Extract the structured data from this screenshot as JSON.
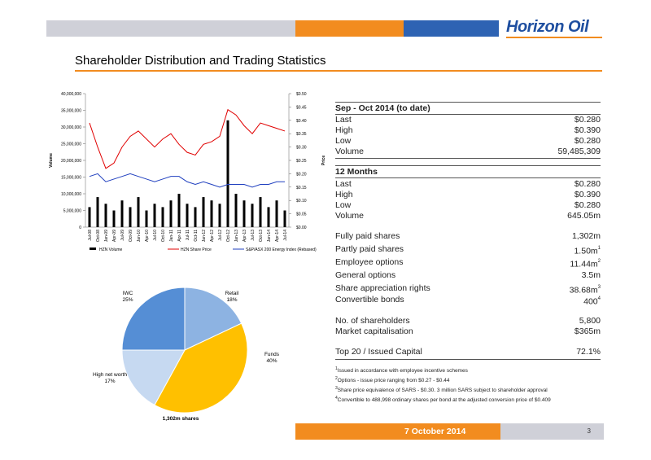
{
  "header": {
    "logo": "Horizon Oil",
    "title": "Shareholder Distribution and Trading Statistics"
  },
  "chart_data": [
    {
      "type": "combo",
      "y_label": "Volume",
      "y2_label": "Price",
      "categories": [
        "Jul-08",
        "Oct-08",
        "Jan-09",
        "Apr-09",
        "Jul-09",
        "Oct-09",
        "Jan-10",
        "Apr-10",
        "Jul-10",
        "Oct-10",
        "Jan-11",
        "Apr-11",
        "Jul-11",
        "Oct-11",
        "Jan-12",
        "Apr-12",
        "Jul-12",
        "Oct-12",
        "Jan-13",
        "Apr-13",
        "Jul-13",
        "Oct-13",
        "Jan-14",
        "Apr-14",
        "Jul-14"
      ],
      "series": [
        {
          "name": "HZN Volume",
          "color": "#000000",
          "kind": "bar",
          "values": [
            6000000,
            9000000,
            7000000,
            5000000,
            8000000,
            6000000,
            9000000,
            5000000,
            7000000,
            6000000,
            8000000,
            10000000,
            7000000,
            6000000,
            9000000,
            8000000,
            7000000,
            32000000,
            10000000,
            8000000,
            7000000,
            9000000,
            6000000,
            8000000,
            5000000
          ]
        },
        {
          "name": "HZN Share Price",
          "color": "#e00000",
          "kind": "line",
          "axis": "y2",
          "values": [
            0.39,
            0.3,
            0.22,
            0.24,
            0.3,
            0.34,
            0.36,
            0.33,
            0.3,
            0.33,
            0.35,
            0.31,
            0.28,
            0.27,
            0.31,
            0.32,
            0.34,
            0.44,
            0.42,
            0.38,
            0.35,
            0.39,
            0.38,
            0.37,
            0.36
          ]
        },
        {
          "name": "S&P/ASX 200 Energy Index (Rebased)",
          "color": "#1f3fbf",
          "kind": "line",
          "axis": "y2",
          "values": [
            0.19,
            0.2,
            0.17,
            0.18,
            0.19,
            0.2,
            0.19,
            0.18,
            0.17,
            0.18,
            0.19,
            0.19,
            0.17,
            0.16,
            0.17,
            0.16,
            0.15,
            0.16,
            0.16,
            0.16,
            0.15,
            0.16,
            0.16,
            0.17,
            0.17
          ]
        }
      ],
      "ylim": [
        0,
        40000000
      ],
      "yticks": [
        {
          "value": 0,
          "label": "0"
        },
        {
          "value": 5000000,
          "label": "5,000,000"
        },
        {
          "value": 10000000,
          "label": "10,000,000"
        },
        {
          "value": 15000000,
          "label": "15,000,000"
        },
        {
          "value": 20000000,
          "label": "20,000,000"
        },
        {
          "value": 25000000,
          "label": "25,000,000"
        },
        {
          "value": 30000000,
          "label": "30,000,000"
        },
        {
          "value": 35000000,
          "label": "35,000,000"
        },
        {
          "value": 40000000,
          "label": "40,000,000"
        }
      ],
      "y2lim": [
        0,
        0.5
      ],
      "y2ticks": [
        {
          "value": 0,
          "label": "$0.00"
        },
        {
          "value": 0.05,
          "label": "$0.05"
        },
        {
          "value": 0.1,
          "label": "$0.10"
        },
        {
          "value": 0.15,
          "label": "$0.15"
        },
        {
          "value": 0.2,
          "label": "$0.20"
        },
        {
          "value": 0.25,
          "label": "$0.25"
        },
        {
          "value": 0.3,
          "label": "$0.30"
        },
        {
          "value": 0.35,
          "label": "$0.35"
        },
        {
          "value": 0.4,
          "label": "$0.40"
        },
        {
          "value": 0.45,
          "label": "$0.45"
        },
        {
          "value": 0.5,
          "label": "$0.50"
        }
      ],
      "legend": "bottom"
    },
    {
      "type": "pie",
      "caption": "1,302m shares",
      "categories": [
        "Retail",
        "Funds",
        "High net worth",
        "IWC"
      ],
      "values": [
        18,
        40,
        17,
        25
      ],
      "value_labels": [
        "18%",
        "40%",
        "17%",
        "25%"
      ],
      "colors": [
        "#8db3e2",
        "#ffc000",
        "#c6d9f1",
        "#558ed5"
      ]
    }
  ],
  "stats": [
    {
      "heading": "Sep - Oct 2014 (to date)",
      "rows": [
        [
          "Last",
          "$0.280"
        ],
        [
          "High",
          "$0.390"
        ],
        [
          "Low",
          "$0.280"
        ],
        [
          "Volume",
          "59,485,309"
        ]
      ]
    },
    {
      "heading": "12 Months",
      "rows": [
        [
          "Last",
          "$0.280"
        ],
        [
          "High",
          "$0.390"
        ],
        [
          "Low",
          "$0.280"
        ],
        [
          "Volume",
          "645.05m"
        ]
      ]
    },
    {
      "rows": [
        [
          "Fully paid shares",
          "1,302m"
        ],
        [
          "Partly paid shares",
          "1.50m",
          "1"
        ],
        [
          "Employee options",
          "11.44m",
          "2"
        ],
        [
          "General options",
          "3.5m"
        ],
        [
          "Share appreciation rights",
          "38.68m",
          "3"
        ],
        [
          "Convertible bonds",
          "400",
          "4"
        ]
      ]
    },
    {
      "rows": [
        [
          "No. of shareholders",
          "5,800"
        ],
        [
          "Market capitalisation",
          "$365m"
        ]
      ]
    },
    {
      "rows": [
        [
          "Top 20 / Issued Capital",
          "72.1%"
        ]
      ]
    }
  ],
  "footnotes": [
    [
      "1",
      "Issued in accordance with employee incentive schemes"
    ],
    [
      "2",
      "Options - issue price ranging from $0.27 - $0.44"
    ],
    [
      "3",
      "Share price equivalence of SARS - $0.30. 3 million SARS subject to shareholder approval"
    ],
    [
      "4",
      "Convertible to 488,998 ordinary shares per bond at the adjusted conversion price of $0.409"
    ]
  ],
  "footer": {
    "date": "7 October 2014",
    "page": "3"
  }
}
